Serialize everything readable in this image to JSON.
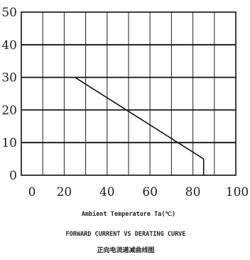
{
  "chart_data": {
    "type": "line",
    "title": "FORWARD CURRENT VS DERATING CURVE",
    "subtitle": "正向电流递减曲线图",
    "xlabel": "Ambient Temperature Ta(℃)",
    "ylabel": "",
    "xlim": [
      0,
      100
    ],
    "ylim": [
      0,
      50
    ],
    "x_ticks": [
      "0",
      "20",
      "40",
      "60",
      "80",
      "100"
    ],
    "y_ticks": [
      "0",
      "10",
      "20",
      "30",
      "40",
      "50"
    ],
    "grid": true,
    "series": [
      {
        "x": [
          25,
          85,
          85
        ],
        "y": [
          30,
          5,
          0
        ]
      }
    ]
  }
}
